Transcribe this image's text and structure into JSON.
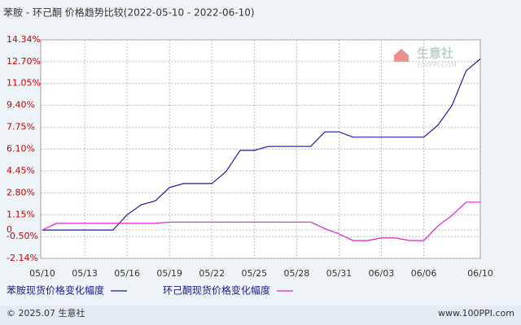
{
  "chart_data": {
    "type": "line",
    "title": "苯胺 - 环己酮 价格趋势比较(2022-05-10 - 2022-06-10)",
    "categories": [
      "05/10",
      null,
      null,
      "05/13",
      null,
      null,
      "05/16",
      null,
      null,
      "05/19",
      null,
      null,
      "05/22",
      null,
      null,
      "05/25",
      null,
      null,
      "05/28",
      null,
      null,
      "05/31",
      null,
      null,
      "06/03",
      null,
      null,
      "06/06",
      null,
      null,
      null,
      "06/10"
    ],
    "series": [
      {
        "name": "苯胺现货价格变化幅度",
        "color": "#1a1aa8",
        "values": [
          0,
          0,
          0,
          0,
          0,
          0,
          1.15,
          1.9,
          2.2,
          3.2,
          3.5,
          3.5,
          3.5,
          4.4,
          6.0,
          6.0,
          6.3,
          6.3,
          6.3,
          6.3,
          7.4,
          7.4,
          7.0,
          7.0,
          7.0,
          7.0,
          7.0,
          7.0,
          7.9,
          9.4,
          12.0,
          12.9
        ]
      },
      {
        "name": "环己酮现货价格变化幅度",
        "color": "#e020d0",
        "values": [
          0,
          0.5,
          0.5,
          0.5,
          0.5,
          0.5,
          0.5,
          0.5,
          0.5,
          0.6,
          0.6,
          0.6,
          0.6,
          0.6,
          0.6,
          0.6,
          0.6,
          0.6,
          0.6,
          0.6,
          0.1,
          -0.3,
          -0.8,
          -0.8,
          -0.6,
          -0.6,
          -0.8,
          -0.8,
          0.3,
          1.1,
          2.1,
          2.1
        ]
      }
    ],
    "ylim": [
      -2.14,
      14.34
    ],
    "yticks": [
      {
        "value": 14.34,
        "label": "14.34%"
      },
      {
        "value": 12.7,
        "label": "12.70%"
      },
      {
        "value": 11.05,
        "label": "11.05%"
      },
      {
        "value": 9.4,
        "label": "9.40%"
      },
      {
        "value": 7.75,
        "label": "7.75%"
      },
      {
        "value": 6.1,
        "label": "6.10%"
      },
      {
        "value": 4.45,
        "label": "4.45%"
      },
      {
        "value": 2.8,
        "label": "2.80%"
      },
      {
        "value": 1.15,
        "label": "1.15%"
      },
      0,
      {
        "value": -0.5,
        "label": "-0.50%"
      },
      {
        "value": -2.14,
        "label": "-2.14%"
      }
    ],
    "grid": true,
    "watermark": {
      "name": "生意社",
      "site": "100PPI.COM"
    },
    "footer": {
      "left": "© 2025.07 生意社",
      "right": "www.100PPI.com"
    }
  }
}
